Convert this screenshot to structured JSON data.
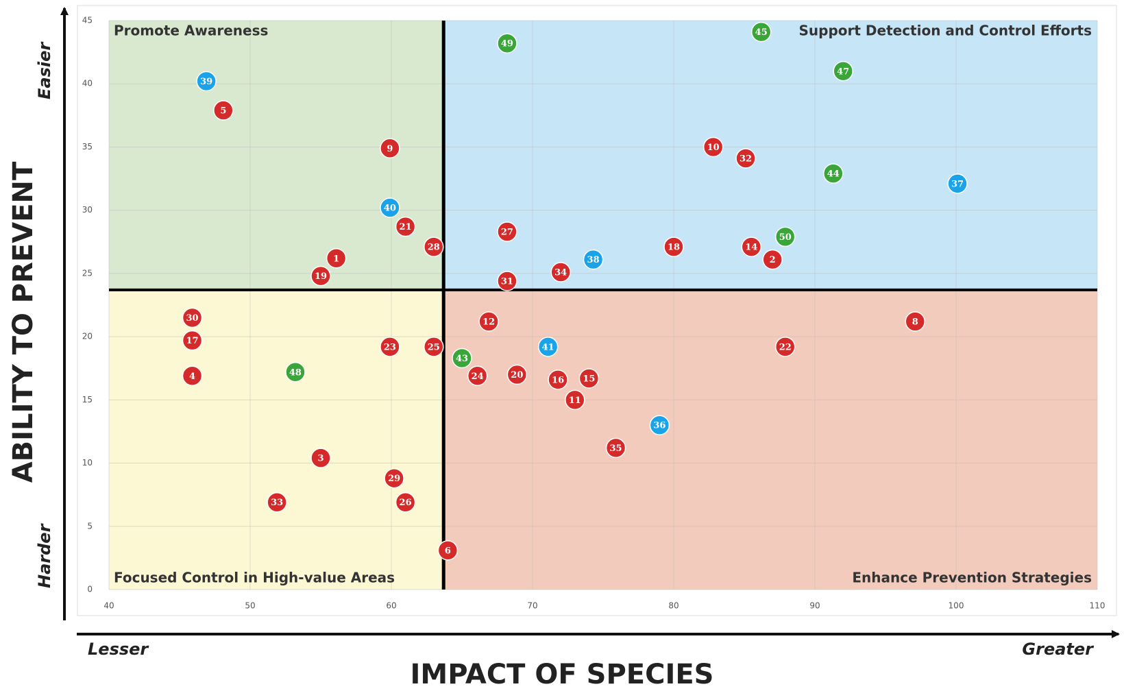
{
  "chart_data": {
    "type": "scatter",
    "xlabel": "IMPACT OF SPECIES",
    "ylabel": "ABILITY TO PREVENT",
    "x_axis_ends": [
      "Lesser",
      "Greater"
    ],
    "y_axis_ends": [
      "Harder",
      "Easier"
    ],
    "xlim": [
      40,
      110
    ],
    "ylim": [
      0,
      45
    ],
    "xticks": [
      40,
      50,
      60,
      70,
      80,
      90,
      100,
      110
    ],
    "yticks": [
      0,
      5,
      10,
      15,
      20,
      25,
      30,
      35,
      40,
      45
    ],
    "grid": true,
    "dividers": {
      "x": 63.7,
      "y": 23.7
    },
    "quadrants": [
      {
        "label": "Promote Awareness",
        "position": "top-left",
        "color": "#d9e9cf"
      },
      {
        "label": "Support Detection and Control Efforts",
        "position": "top-right",
        "color": "#c6e6f8"
      },
      {
        "label": "Focused Control in High-value Areas",
        "position": "bottom-left",
        "color": "#fcf8d3"
      },
      {
        "label": "Enhance Prevention Strategies",
        "position": "bottom-right",
        "color": "#f3cbbd"
      }
    ],
    "series": [
      {
        "color": "#d42a2a",
        "labels": [
          "1",
          "2",
          "3",
          "4",
          "5",
          "6",
          "8",
          "9",
          "10",
          "11",
          "12",
          "14",
          "15",
          "16",
          "17",
          "18",
          "19",
          "20",
          "21",
          "22",
          "23",
          "24",
          "25",
          "26",
          "27",
          "28",
          "29",
          "30",
          "31",
          "32",
          "33",
          "34",
          "35"
        ],
        "x": [
          56.1,
          87.0,
          55.0,
          45.9,
          48.1,
          64.0,
          97.1,
          59.9,
          82.8,
          73.0,
          66.9,
          85.5,
          74.0,
          71.8,
          45.9,
          80.0,
          55.0,
          68.9,
          61.0,
          87.9,
          59.9,
          66.1,
          63.0,
          61.0,
          68.2,
          63.0,
          60.2,
          45.9,
          68.2,
          85.1,
          51.9,
          72.0,
          75.9
        ],
        "y": [
          26.2,
          26.1,
          10.4,
          16.9,
          37.9,
          3.1,
          21.2,
          34.9,
          35.0,
          15.0,
          21.2,
          27.1,
          16.7,
          16.6,
          19.7,
          27.1,
          24.8,
          17.0,
          28.7,
          19.2,
          19.2,
          16.9,
          19.2,
          6.9,
          28.3,
          27.1,
          8.8,
          21.5,
          24.4,
          34.1,
          6.9,
          25.1,
          11.2
        ]
      },
      {
        "color": "#1aa3e8",
        "labels": [
          "36",
          "37",
          "38",
          "39",
          "40",
          "41"
        ],
        "x": [
          79.0,
          100.1,
          74.3,
          46.9,
          59.9,
          71.1
        ],
        "y": [
          13.0,
          32.1,
          26.1,
          40.2,
          30.2,
          19.2
        ]
      },
      {
        "color": "#3aa63a",
        "labels": [
          "43",
          "44",
          "45",
          "47",
          "48",
          "49",
          "50"
        ],
        "x": [
          65.0,
          91.3,
          86.2,
          92.0,
          53.2,
          68.2,
          87.9
        ],
        "y": [
          18.3,
          32.9,
          44.1,
          41.0,
          17.2,
          43.2,
          27.9
        ]
      }
    ]
  }
}
